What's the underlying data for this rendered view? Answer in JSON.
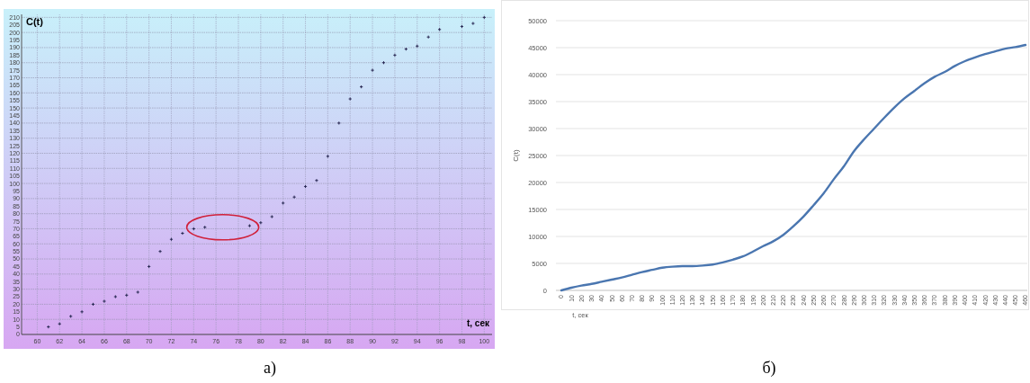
{
  "chart_data": [
    {
      "type": "scatter",
      "xlabel": "t, сек",
      "ylabel": "C(t)",
      "annotations": [
        "а)"
      ],
      "marker": "cross",
      "grid": true,
      "color": "#2a2a55",
      "x": [
        61,
        62,
        63,
        64,
        65,
        66,
        67,
        68,
        69,
        70,
        71,
        72,
        73,
        74,
        75,
        79,
        80,
        81,
        82,
        83,
        84,
        85,
        86,
        87,
        88,
        89,
        90,
        91,
        92,
        93,
        94,
        95,
        96,
        98,
        99,
        100
      ],
      "values": [
        5,
        7,
        12,
        15,
        20,
        22,
        25,
        26,
        28,
        45,
        55,
        63,
        67,
        70,
        71,
        72,
        74,
        78,
        87,
        91,
        98,
        102,
        118,
        140,
        156,
        164,
        175,
        180,
        185,
        189,
        191,
        197,
        202,
        204,
        206,
        210
      ],
      "xlim": [
        58.6,
        100.7
      ],
      "xticks": [
        60,
        62,
        64,
        66,
        68,
        70,
        72,
        74,
        76,
        78,
        80,
        82,
        84,
        86,
        88,
        90,
        92,
        94,
        96,
        98,
        100
      ],
      "ylim": [
        0,
        212
      ],
      "yticks": [
        0,
        5,
        10,
        15,
        20,
        25,
        30,
        35,
        40,
        45,
        50,
        55,
        60,
        65,
        70,
        75,
        80,
        85,
        90,
        95,
        100,
        105,
        110,
        115,
        120,
        125,
        130,
        135,
        140,
        145,
        150,
        155,
        160,
        165,
        170,
        175,
        180,
        185,
        190,
        195,
        200,
        205,
        210
      ]
    },
    {
      "type": "line",
      "xlabel": "t, сек",
      "ylabel": "C(t)",
      "annotations": [
        "б)"
      ],
      "grid": "y",
      "color": "#4a76b0",
      "categories": [
        "0",
        "10",
        "20",
        "30",
        "40",
        "50",
        "60",
        "70",
        "80",
        "90",
        "100",
        "110",
        "120",
        "130",
        "140",
        "150",
        "160",
        "170",
        "180",
        "190",
        "200",
        "210",
        "220",
        "230",
        "240",
        "250",
        "260",
        "270",
        "280",
        "290",
        "300",
        "310",
        "320",
        "330",
        "340",
        "350",
        "360",
        "370",
        "380",
        "390",
        "400",
        "410",
        "420",
        "430",
        "440",
        "450",
        "460"
      ],
      "values": [
        0,
        500,
        900,
        1200,
        1600,
        2000,
        2400,
        2900,
        3400,
        3800,
        4200,
        4400,
        4500,
        4500,
        4600,
        4800,
        5200,
        5700,
        6300,
        7200,
        8200,
        9100,
        10300,
        11900,
        13700,
        15800,
        18000,
        20600,
        23000,
        25800,
        28000,
        30000,
        32000,
        33900,
        35600,
        37000,
        38400,
        39600,
        40500,
        41600,
        42500,
        43200,
        43800,
        44300,
        44800,
        45100,
        45500
      ],
      "ylim": [
        0,
        50000
      ],
      "yticks": [
        0,
        5000,
        10000,
        15000,
        20000,
        25000,
        30000,
        35000,
        40000,
        45000,
        50000
      ]
    }
  ]
}
